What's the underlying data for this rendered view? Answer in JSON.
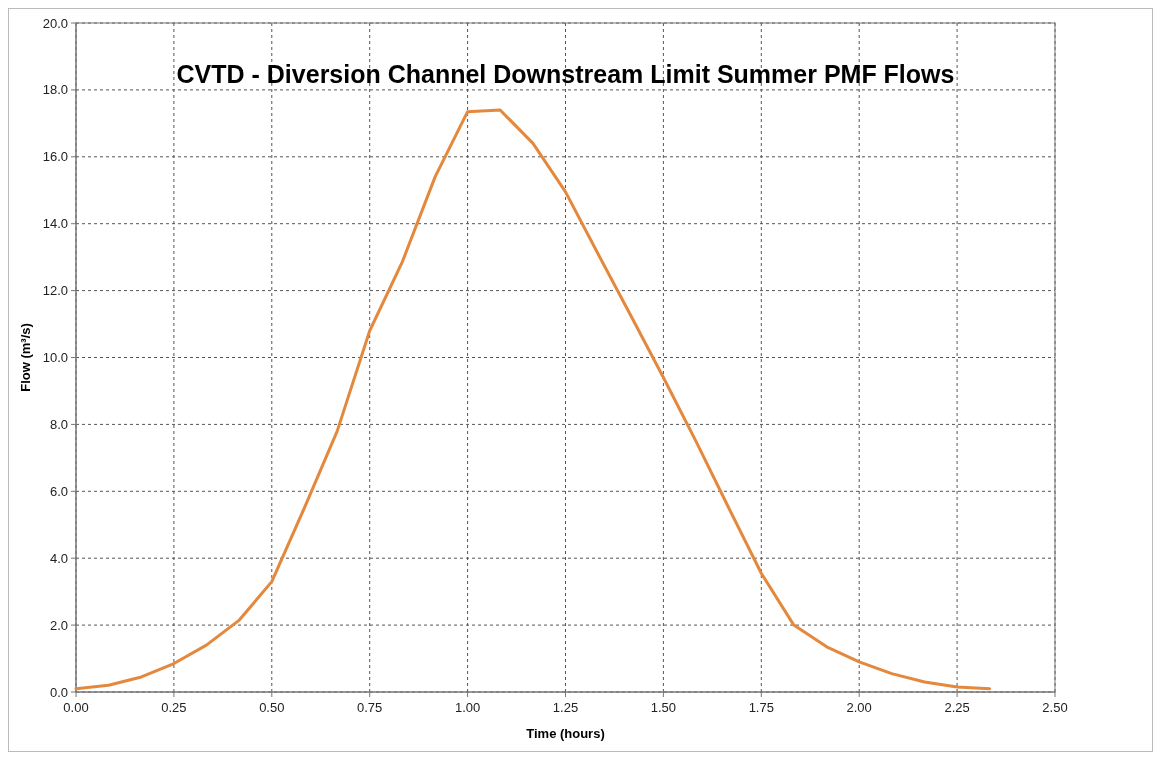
{
  "chart_data": {
    "type": "line",
    "title": "CVTD - Diversion Channel Downstream Limit Summer PMF Flows",
    "xlabel": "Time (hours)",
    "ylabel": "Flow (m³/s)",
    "x": [
      0,
      0.083,
      0.167,
      0.25,
      0.333,
      0.417,
      0.5,
      0.583,
      0.667,
      0.75,
      0.833,
      0.917,
      1.0,
      1.083,
      1.167,
      1.25,
      1.333,
      1.417,
      1.5,
      1.583,
      1.667,
      1.75,
      1.833,
      1.917,
      2.0,
      2.083,
      2.167,
      2.25,
      2.333
    ],
    "series": [
      {
        "color": "#e3883c",
        "values": [
          0.1,
          0.2,
          0.45,
          0.85,
          1.4,
          2.15,
          3.3,
          5.5,
          7.8,
          10.8,
          12.85,
          15.4,
          17.35,
          17.4,
          16.4,
          14.95,
          13.1,
          11.25,
          9.4,
          7.5,
          5.5,
          3.55,
          2.0,
          1.35,
          0.9,
          0.55,
          0.3,
          0.15,
          0.1
        ]
      }
    ],
    "xlim": [
      0,
      2.5
    ],
    "ylim": [
      0,
      20
    ],
    "xticks": [
      {
        "value": 0,
        "label": "0.00"
      },
      {
        "value": 0.25,
        "label": "0.25"
      },
      {
        "value": 0.5,
        "label": "0.50"
      },
      {
        "value": 0.75,
        "label": "0.75"
      },
      {
        "value": 1,
        "label": "1.00"
      },
      {
        "value": 1.25,
        "label": "1.25"
      },
      {
        "value": 1.5,
        "label": "1.50"
      },
      {
        "value": 1.75,
        "label": "1.75"
      },
      {
        "value": 2,
        "label": "2.00"
      },
      {
        "value": 2.25,
        "label": "2.25"
      },
      {
        "value": 2.5,
        "label": "2.50"
      }
    ],
    "yticks": [
      {
        "value": 0,
        "label": "0.0"
      },
      {
        "value": 2,
        "label": "2.0"
      },
      {
        "value": 4,
        "label": "4.0"
      },
      {
        "value": 6,
        "label": "6.0"
      },
      {
        "value": 8,
        "label": "8.0"
      },
      {
        "value": 10,
        "label": "10.0"
      },
      {
        "value": 12,
        "label": "12.0"
      },
      {
        "value": 14,
        "label": "14.0"
      },
      {
        "value": 16,
        "label": "16.0"
      },
      {
        "value": 18,
        "label": "18.0"
      },
      {
        "value": 20,
        "label": "20.0"
      }
    ],
    "grid": true,
    "marker": "none",
    "line_style": "solid"
  }
}
